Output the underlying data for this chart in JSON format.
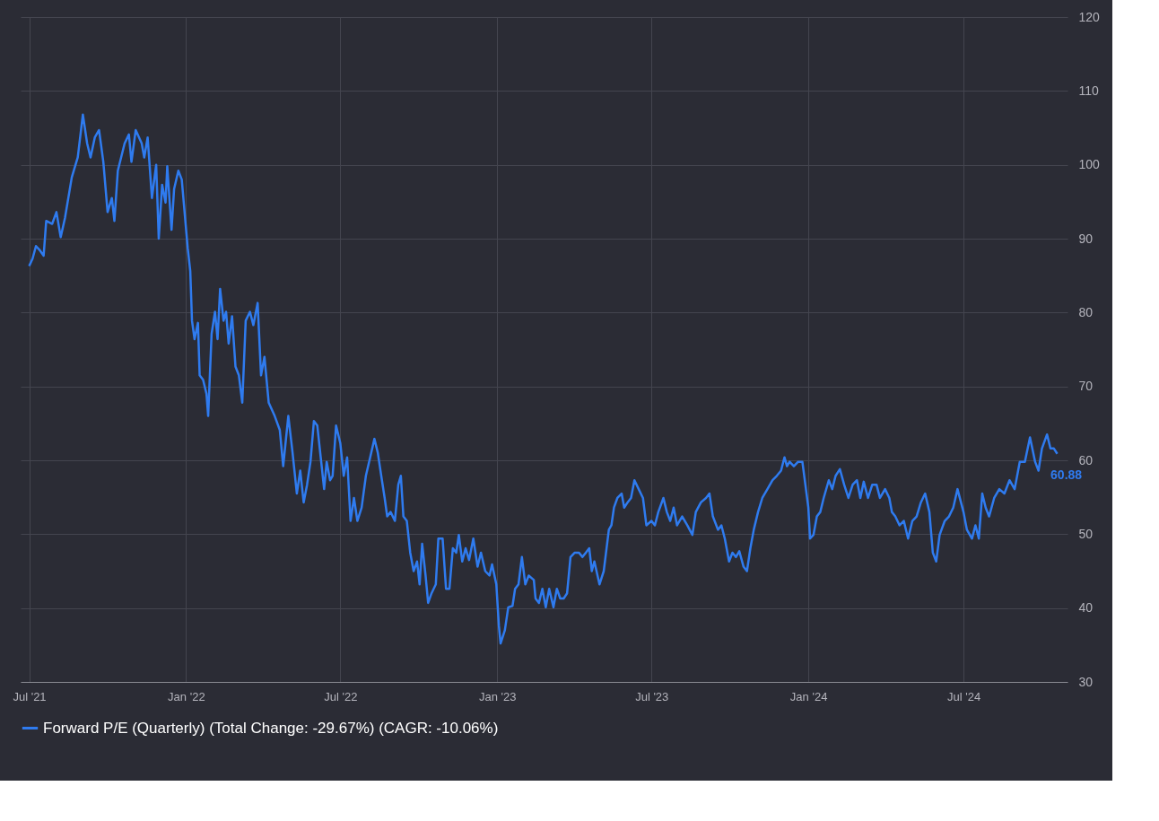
{
  "chart_data": {
    "type": "line",
    "xlim": [
      "2021-06-21",
      "2024-10-31"
    ],
    "ylim": [
      30,
      120
    ],
    "yticks": [
      30,
      40,
      50,
      60,
      70,
      80,
      90,
      100,
      110,
      120
    ],
    "xticks": [
      {
        "value": "2021-07-01",
        "label": "Jul '21"
      },
      {
        "value": "2022-01-01",
        "label": "Jan '22"
      },
      {
        "value": "2022-07-01",
        "label": "Jul '22"
      },
      {
        "value": "2023-01-01",
        "label": "Jan '23"
      },
      {
        "value": "2023-07-01",
        "label": "Jul '23"
      },
      {
        "value": "2024-01-01",
        "label": "Jan '24"
      },
      {
        "value": "2024-07-01",
        "label": "Jul '24"
      }
    ],
    "grid": true,
    "legend": "bottom",
    "marker": "none",
    "line_style": "solid",
    "annotations": [
      {
        "text": "60.88",
        "x": "2024-10-19",
        "y": 60.88
      }
    ],
    "series": [
      {
        "name": "Forward P/E (Quarterly) (Total Change: -29.67%) (CAGR: -10.06%)",
        "color": "#2f7bef",
        "x": [
          "2021-07-01",
          "2021-07-05",
          "2021-07-09",
          "2021-07-13",
          "2021-07-18",
          "2021-07-21",
          "2021-07-28",
          "2021-08-02",
          "2021-08-07",
          "2021-08-12",
          "2021-08-20",
          "2021-08-27",
          "2021-09-02",
          "2021-09-07",
          "2021-09-11",
          "2021-09-16",
          "2021-09-21",
          "2021-09-26",
          "2021-10-01",
          "2021-10-06",
          "2021-10-09",
          "2021-10-13",
          "2021-10-21",
          "2021-10-26",
          "2021-10-29",
          "2021-11-03",
          "2021-11-10",
          "2021-11-13",
          "2021-11-17",
          "2021-11-22",
          "2021-11-27",
          "2021-11-30",
          "2021-12-04",
          "2021-12-08",
          "2021-12-10",
          "2021-12-15",
          "2021-12-18",
          "2021-12-23",
          "2021-12-27",
          "2022-01-03",
          "2022-01-06",
          "2022-01-08",
          "2022-01-11",
          "2022-01-15",
          "2022-01-17",
          "2022-01-21",
          "2022-01-25",
          "2022-01-27",
          "2022-01-31",
          "2022-02-04",
          "2022-02-07",
          "2022-02-10",
          "2022-02-14",
          "2022-02-17",
          "2022-02-20",
          "2022-02-24",
          "2022-02-28",
          "2022-03-04",
          "2022-03-08",
          "2022-03-12",
          "2022-03-17",
          "2022-03-21",
          "2022-03-26",
          "2022-03-30",
          "2022-04-03",
          "2022-04-08",
          "2022-04-15",
          "2022-04-21",
          "2022-04-25",
          "2022-05-01",
          "2022-05-06",
          "2022-05-11",
          "2022-05-15",
          "2022-05-19",
          "2022-05-23",
          "2022-05-27",
          "2022-05-31",
          "2022-06-04",
          "2022-06-08",
          "2022-06-12",
          "2022-06-15",
          "2022-06-19",
          "2022-06-22",
          "2022-06-26",
          "2022-07-01",
          "2022-07-05",
          "2022-07-09",
          "2022-07-13",
          "2022-07-17",
          "2022-07-21",
          "2022-07-26",
          "2022-07-31",
          "2022-08-05",
          "2022-08-10",
          "2022-08-14",
          "2022-08-18",
          "2022-08-22",
          "2022-08-25",
          "2022-08-29",
          "2022-09-03",
          "2022-09-07",
          "2022-09-10",
          "2022-09-13",
          "2022-09-17",
          "2022-09-21",
          "2022-09-25",
          "2022-09-29",
          "2022-10-02",
          "2022-10-05",
          "2022-10-09",
          "2022-10-12",
          "2022-10-16",
          "2022-10-21",
          "2022-10-24",
          "2022-10-29",
          "2022-11-02",
          "2022-11-06",
          "2022-11-10",
          "2022-11-14",
          "2022-11-17",
          "2022-11-21",
          "2022-11-25",
          "2022-11-29",
          "2022-12-04",
          "2022-12-09",
          "2022-12-13",
          "2022-12-18",
          "2022-12-23",
          "2022-12-26",
          "2022-12-31",
          "2023-01-03",
          "2023-01-05",
          "2023-01-10",
          "2023-01-14",
          "2023-01-19",
          "2023-01-22",
          "2023-01-26",
          "2023-01-30",
          "2023-02-03",
          "2023-02-07",
          "2023-02-13",
          "2023-02-15",
          "2023-02-19",
          "2023-02-23",
          "2023-02-27",
          "2023-03-03",
          "2023-03-08",
          "2023-03-12",
          "2023-03-16",
          "2023-03-20",
          "2023-03-24",
          "2023-03-28",
          "2023-04-02",
          "2023-04-07",
          "2023-04-11",
          "2023-04-15",
          "2023-04-19",
          "2023-04-22",
          "2023-04-25",
          "2023-05-01",
          "2023-05-06",
          "2023-05-12",
          "2023-05-15",
          "2023-05-18",
          "2023-05-22",
          "2023-05-27",
          "2023-05-30",
          "2023-06-03",
          "2023-06-07",
          "2023-06-11",
          "2023-06-16",
          "2023-06-21",
          "2023-06-25",
          "2023-07-01",
          "2023-07-05",
          "2023-07-09",
          "2023-07-15",
          "2023-07-19",
          "2023-07-23",
          "2023-07-27",
          "2023-07-31",
          "2023-08-06",
          "2023-08-12",
          "2023-08-18",
          "2023-08-22",
          "2023-08-28",
          "2023-09-03",
          "2023-09-07",
          "2023-09-11",
          "2023-09-17",
          "2023-09-21",
          "2023-09-25",
          "2023-09-30",
          "2023-10-04",
          "2023-10-08",
          "2023-10-12",
          "2023-10-17",
          "2023-10-21",
          "2023-10-25",
          "2023-10-29",
          "2023-11-03",
          "2023-11-08",
          "2023-11-14",
          "2023-11-20",
          "2023-11-25",
          "2023-11-30",
          "2023-12-04",
          "2023-12-07",
          "2023-12-10",
          "2023-12-15",
          "2023-12-20",
          "2023-12-25",
          "2024-01-01",
          "2024-01-03",
          "2024-01-07",
          "2024-01-11",
          "2024-01-15",
          "2024-01-19",
          "2024-01-25",
          "2024-01-29",
          "2024-02-02",
          "2024-02-07",
          "2024-02-12",
          "2024-02-17",
          "2024-02-22",
          "2024-02-27",
          "2024-03-02",
          "2024-03-06",
          "2024-03-11",
          "2024-03-16",
          "2024-03-21",
          "2024-03-25",
          "2024-03-31",
          "2024-04-05",
          "2024-04-08",
          "2024-04-12",
          "2024-04-17",
          "2024-04-22",
          "2024-04-27",
          "2024-05-02",
          "2024-05-07",
          "2024-05-12",
          "2024-05-17",
          "2024-05-22",
          "2024-05-26",
          "2024-05-30",
          "2024-06-03",
          "2024-06-09",
          "2024-06-14",
          "2024-06-19",
          "2024-06-24",
          "2024-07-01",
          "2024-07-05",
          "2024-07-11",
          "2024-07-15",
          "2024-07-19",
          "2024-07-23",
          "2024-07-27",
          "2024-07-31",
          "2024-08-06",
          "2024-08-12",
          "2024-08-18",
          "2024-08-24",
          "2024-08-30",
          "2024-09-05",
          "2024-09-11",
          "2024-09-17",
          "2024-09-23",
          "2024-09-27",
          "2024-10-01",
          "2024-10-07",
          "2024-10-11",
          "2024-10-15",
          "2024-10-19"
        ],
        "values": [
          86.3,
          87.3,
          89.0,
          88.5,
          87.7,
          92.4,
          92.0,
          93.6,
          90.2,
          92.8,
          98.3,
          101.0,
          106.8,
          102.9,
          101.0,
          103.7,
          104.7,
          100.4,
          93.6,
          95.5,
          92.4,
          99.2,
          102.9,
          104.1,
          100.4,
          104.7,
          102.9,
          101.0,
          103.7,
          95.5,
          100.0,
          90.0,
          97.3,
          94.9,
          99.8,
          91.2,
          96.7,
          99.2,
          98.0,
          88.7,
          85.6,
          78.9,
          76.4,
          78.6,
          71.5,
          70.9,
          69.0,
          66.0,
          77.1,
          80.1,
          76.4,
          83.2,
          78.9,
          80.1,
          75.8,
          79.5,
          72.7,
          71.5,
          67.8,
          78.9,
          80.1,
          78.3,
          81.3,
          71.5,
          74.0,
          67.8,
          66.0,
          64.1,
          59.2,
          66.0,
          61.0,
          55.5,
          58.6,
          54.3,
          56.7,
          59.8,
          65.3,
          64.7,
          60.4,
          56.1,
          59.8,
          57.3,
          57.9,
          64.7,
          62.3,
          57.9,
          60.4,
          51.8,
          54.9,
          51.8,
          53.6,
          57.9,
          60.4,
          62.9,
          61.0,
          57.9,
          54.9,
          52.4,
          53.0,
          51.8,
          56.7,
          57.9,
          52.4,
          51.8,
          47.5,
          45.0,
          46.3,
          43.2,
          48.7,
          44.4,
          40.7,
          42.0,
          43.2,
          49.4,
          49.4,
          42.6,
          42.6,
          48.1,
          47.5,
          49.9,
          46.3,
          48.1,
          46.5,
          49.4,
          45.6,
          47.5,
          45.0,
          44.4,
          45.9,
          43.2,
          37.6,
          35.2,
          37.0,
          40.1,
          40.3,
          42.6,
          43.2,
          46.9,
          43.2,
          44.4,
          43.8,
          41.3,
          40.7,
          42.6,
          40.1,
          42.6,
          40.1,
          42.6,
          41.3,
          41.3,
          42.0,
          46.9,
          47.5,
          47.5,
          46.9,
          47.5,
          48.1,
          45.0,
          46.3,
          43.2,
          45.0,
          50.6,
          51.2,
          53.6,
          54.9,
          55.5,
          53.6,
          54.3,
          54.9,
          57.3,
          56.1,
          54.9,
          51.2,
          51.8,
          51.2,
          53.0,
          54.9,
          53.0,
          51.8,
          53.6,
          51.2,
          52.4,
          51.2,
          49.9,
          53.0,
          54.3,
          54.9,
          55.5,
          52.4,
          50.6,
          51.2,
          49.4,
          46.3,
          47.5,
          46.9,
          47.7,
          45.6,
          45.0,
          48.1,
          50.6,
          53.0,
          54.9,
          56.1,
          57.3,
          57.9,
          58.6,
          60.4,
          59.2,
          59.8,
          59.2,
          59.8,
          59.8,
          53.6,
          49.4,
          49.9,
          52.4,
          53.0,
          54.9,
          57.3,
          56.1,
          57.9,
          58.8,
          56.7,
          54.9,
          56.7,
          57.3,
          54.9,
          57.1,
          54.9,
          56.7,
          56.7,
          54.9,
          56.1,
          54.9,
          53.0,
          52.4,
          51.2,
          51.8,
          49.4,
          51.8,
          52.4,
          54.3,
          55.5,
          53.0,
          47.5,
          46.3,
          49.9,
          51.8,
          52.4,
          53.6,
          56.1,
          53.0,
          50.6,
          49.4,
          51.2,
          49.4,
          55.5,
          53.6,
          52.4,
          54.9,
          56.1,
          55.5,
          57.3,
          56.1,
          59.8,
          59.8,
          63.1,
          59.8,
          58.6,
          61.6,
          63.5,
          61.6,
          61.6,
          60.88
        ]
      }
    ]
  }
}
